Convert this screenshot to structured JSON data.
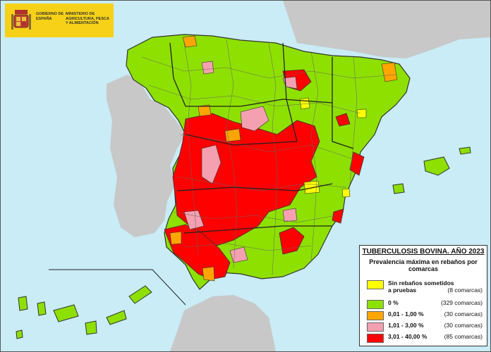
{
  "header": {
    "government": "GOBIERNO DE ESPAÑA",
    "ministry": "MINISTERIO DE AGRICULTURA, PESCA Y ALIMENTACIÓN"
  },
  "legend": {
    "title": "TUBERCULOSIS BOVINA.  AÑO 2023",
    "subtitle": "Prevalencia máxima en rebaños por comarcas",
    "items": [
      {
        "label": "Sin rebaños sometidos a pruebas",
        "count": "(8 comarcas)",
        "color": "#ffff00"
      },
      {
        "label": "0 %",
        "count": "(329 comarcas)",
        "color": "#8ee000"
      },
      {
        "label": "0,01 - 1,00 %",
        "count": "(30 comarcas)",
        "color": "#ffa500"
      },
      {
        "label": "1,01 - 3,00 %",
        "count": "(30 comarcas)",
        "color": "#f4a0b0"
      },
      {
        "label": "3,01 - 40,00 %",
        "count": "(85 comarcas)",
        "color": "#ff0000"
      }
    ]
  },
  "colors": {
    "sea": "#c9ecf6",
    "neighbor_land": "#c8c8c8",
    "region_border": "#333333"
  }
}
